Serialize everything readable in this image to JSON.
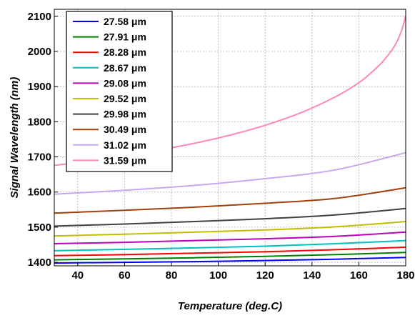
{
  "chart_data": {
    "type": "line",
    "title": "",
    "xlabel": "Temperature (deg.C)",
    "ylabel": "Signal Wavelength (nm)",
    "xlim": [
      30,
      180
    ],
    "ylim": [
      1390,
      2120
    ],
    "xticks": [
      40,
      60,
      80,
      100,
      120,
      140,
      160,
      180
    ],
    "yticks": [
      1400,
      1500,
      1600,
      1700,
      1800,
      1900,
      2000,
      2100
    ],
    "grid": true,
    "legend_position": "top-left",
    "series": [
      {
        "name": "27.58 μm",
        "color": "#0000ff",
        "x": [
          30,
          60,
          90,
          120,
          150,
          180
        ],
        "y": [
          1398,
          1400,
          1402,
          1405,
          1409,
          1414
        ]
      },
      {
        "name": "27.91 μm",
        "color": "#008000",
        "x": [
          30,
          60,
          90,
          120,
          150,
          180
        ],
        "y": [
          1407,
          1410,
          1413,
          1417,
          1422,
          1428
        ]
      },
      {
        "name": "28.28 μm",
        "color": "#ff0000",
        "x": [
          30,
          60,
          90,
          120,
          150,
          180
        ],
        "y": [
          1419,
          1422,
          1426,
          1430,
          1436,
          1443
        ]
      },
      {
        "name": "28.67 μm",
        "color": "#00bfbf",
        "x": [
          30,
          60,
          90,
          120,
          150,
          180
        ],
        "y": [
          1433,
          1437,
          1441,
          1446,
          1453,
          1462
        ]
      },
      {
        "name": "29.08 μm",
        "color": "#bf00bf",
        "x": [
          30,
          60,
          90,
          120,
          150,
          180
        ],
        "y": [
          1453,
          1457,
          1462,
          1467,
          1474,
          1486
        ]
      },
      {
        "name": "29.52 μm",
        "color": "#bfbf00",
        "x": [
          30,
          60,
          90,
          120,
          150,
          180
        ],
        "y": [
          1475,
          1480,
          1486,
          1492,
          1501,
          1516
        ]
      },
      {
        "name": "29.98 μm",
        "color": "#404040",
        "x": [
          30,
          60,
          90,
          120,
          150,
          180
        ],
        "y": [
          1503,
          1509,
          1516,
          1524,
          1535,
          1553
        ]
      },
      {
        "name": "30.49 μm",
        "color": "#a0400b",
        "x": [
          30,
          60,
          90,
          120,
          150,
          180
        ],
        "y": [
          1540,
          1548,
          1557,
          1568,
          1582,
          1612
        ]
      },
      {
        "name": "31.02 μm",
        "color": "#c8a8f0",
        "x": [
          30,
          60,
          90,
          120,
          150,
          180
        ],
        "y": [
          1594,
          1605,
          1619,
          1638,
          1663,
          1712
        ]
      },
      {
        "name": "31.59 μm",
        "color": "#ff88bb",
        "x": [
          30,
          45,
          60,
          75,
          90,
          105,
          120,
          135,
          150,
          160,
          165,
          170,
          175,
          178,
          180
        ],
        "y": [
          1676,
          1688,
          1704,
          1720,
          1739,
          1762,
          1790,
          1825,
          1871,
          1911,
          1938,
          1970,
          2013,
          2055,
          2102
        ]
      }
    ]
  }
}
